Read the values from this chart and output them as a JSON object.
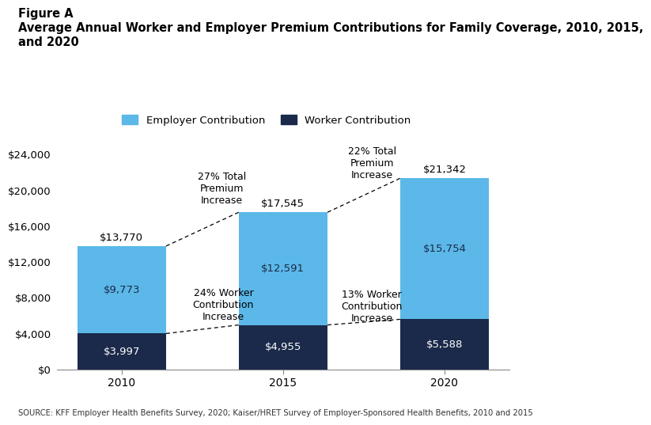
{
  "title_line1": "Figure A",
  "title_line2": "Average Annual Worker and Employer Premium Contributions for Family Coverage, 2010, 2015,",
  "title_line3": "and 2020",
  "years": [
    "2010",
    "2015",
    "2020"
  ],
  "worker_values": [
    3997,
    4955,
    5588
  ],
  "employer_values": [
    9773,
    12591,
    15754
  ],
  "total_values": [
    13770,
    17545,
    21342
  ],
  "worker_labels": [
    "$3,997",
    "$4,955",
    "$5,588"
  ],
  "employer_labels": [
    "$9,773",
    "$12,591",
    "$15,754"
  ],
  "total_labels": [
    "$13,770",
    "$17,545",
    "$21,342"
  ],
  "employer_color": "#5BB8E8",
  "worker_color": "#1B2A4A",
  "ylim": [
    0,
    26000
  ],
  "yticks": [
    0,
    4000,
    8000,
    12000,
    16000,
    20000,
    24000
  ],
  "ytick_labels": [
    "$0",
    "$4,000",
    "$8,000",
    "$12,000",
    "$16,000",
    "$20,000",
    "$24,000"
  ],
  "annotation_total_2010_2015": "27% Total\nPremium\nIncrease",
  "annotation_total_2015_2020": "22% Total\nPremium\nIncrease",
  "annotation_worker_2010_2015": "24% Worker\nContribution\nIncrease",
  "annotation_worker_2015_2020": "13% Worker\nContribution\nIncrease",
  "source_text": "SOURCE: KFF Employer Health Benefits Survey, 2020; Kaiser/HRET Survey of Employer-Sponsored Health Benefits, 2010 and 2015",
  "legend_employer": "Employer Contribution",
  "legend_worker": "Worker Contribution",
  "bar_width": 0.55
}
